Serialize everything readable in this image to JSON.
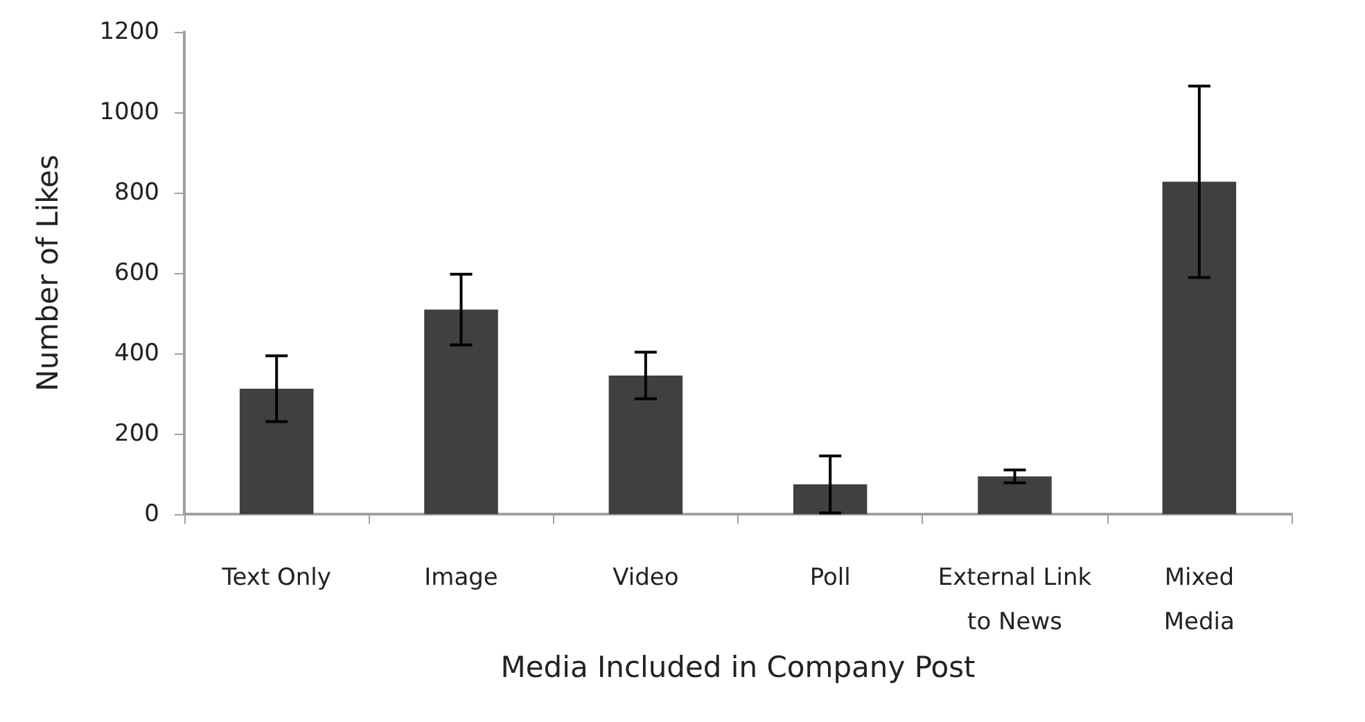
{
  "chart_data": {
    "type": "bar",
    "xlabel": "Media Included in Company Post",
    "ylabel": "Number of Likes",
    "categories": [
      "Text Only",
      "Image",
      "Video",
      "Poll",
      "External Link\nto News",
      "Mixed\nMedia"
    ],
    "values": [
      312,
      509,
      345,
      74,
      94,
      827
    ],
    "errors": [
      82,
      88,
      58,
      71,
      16,
      238
    ],
    "color": "#404040",
    "ylim": [
      0,
      1200
    ],
    "yticks": [
      0,
      200,
      400,
      600,
      800,
      1000,
      1200
    ],
    "grid": false
  }
}
